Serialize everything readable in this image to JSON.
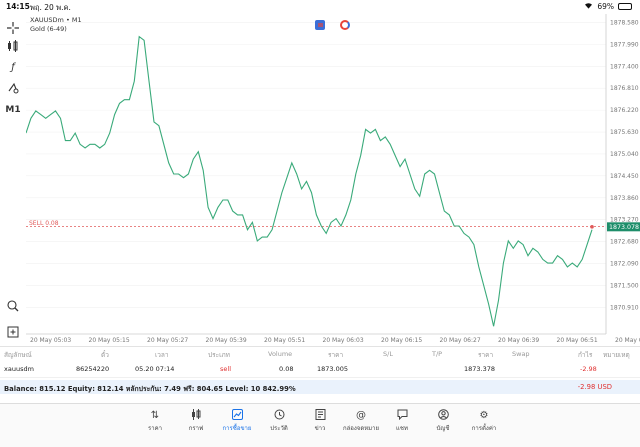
{
  "status_bar": {
    "time": "14:15",
    "date": "พฤ. 20 พ.ค.",
    "battery": "69%",
    "battery_level": 0.69
  },
  "chart": {
    "symbol_line": "XAUUSDm • M1",
    "description": "Gold (6-49)",
    "timeframe": "M1",
    "sell_label": "SELL 0.08",
    "current_price_label": "1873.078",
    "line_color": "#3aaa7a",
    "sell_line_color": "#e05a5a",
    "price_badge_color": "#1e8e6a"
  },
  "chart_data": {
    "type": "line",
    "y_ticks": [
      "1878.580",
      "1877.990",
      "1877.400",
      "1876.810",
      "1876.220",
      "1875.630",
      "1875.040",
      "1874.450",
      "1873.860",
      "1873.270",
      "1872.680",
      "1872.090",
      "1871.500",
      "1870.910"
    ],
    "ylim": [
      1870.3,
      1878.7
    ],
    "x_ticks": [
      "20 May 05:03",
      "20 May 05:15",
      "20 May 05:27",
      "20 May 05:39",
      "20 May 05:51",
      "20 May 06:03",
      "20 May 06:15",
      "20 May 06:27",
      "20 May 06:39",
      "20 May 06:51",
      "20 May 07:03",
      "20 May 07:15"
    ],
    "sell_level": 1873.09,
    "current_price": 1873.078,
    "series": [
      {
        "values": [
          1875.6,
          1876.0,
          1876.2,
          1876.1,
          1876.0,
          1876.1,
          1876.2,
          1876.0,
          1875.4,
          1875.4,
          1875.6,
          1875.3,
          1875.2,
          1875.3,
          1875.3,
          1875.2,
          1875.3,
          1875.6,
          1876.1,
          1876.4,
          1876.5,
          1876.5,
          1877.0,
          1878.2,
          1878.1,
          1877.0,
          1875.9,
          1875.8,
          1875.3,
          1874.8,
          1874.5,
          1874.5,
          1874.4,
          1874.5,
          1874.9,
          1875.1,
          1874.6,
          1873.6,
          1873.3,
          1873.6,
          1873.8,
          1873.8,
          1873.5,
          1873.4,
          1873.4,
          1873.0,
          1873.2,
          1872.7,
          1872.8,
          1872.8,
          1873.0,
          1873.5,
          1874.0,
          1874.4,
          1874.8,
          1874.5,
          1874.1,
          1874.3,
          1874.0,
          1873.4,
          1873.1,
          1872.9,
          1873.2,
          1873.3,
          1873.1,
          1873.4,
          1873.8,
          1874.5,
          1875.0,
          1875.7,
          1875.6,
          1875.7,
          1875.4,
          1875.5,
          1875.3,
          1875.0,
          1874.7,
          1874.9,
          1874.5,
          1874.1,
          1873.9,
          1874.5,
          1874.6,
          1874.5,
          1874.0,
          1873.5,
          1873.4,
          1873.1,
          1873.1,
          1872.9,
          1872.8,
          1872.6,
          1872.0,
          1871.5,
          1871.0,
          1870.4,
          1871.1,
          1872.1,
          1872.7,
          1872.5,
          1872.7,
          1872.6,
          1872.3,
          1872.5,
          1872.4,
          1872.2,
          1872.1,
          1872.1,
          1872.3,
          1872.2,
          1872.0,
          1872.1,
          1872.0,
          1872.2,
          1872.6,
          1873.0
        ]
      }
    ]
  },
  "trade_table": {
    "headers": {
      "symbol": "สัญลักษณ์",
      "ticket": "ตั๋ว",
      "time": "เวลา",
      "type": "ประเภท",
      "volume": "Volume",
      "price": "ราคา",
      "sl": "S/L",
      "tp": "T/P",
      "price2": "ราคา",
      "swap": "Swap",
      "profit": "กำไร",
      "comment": "หมายเหตุ"
    },
    "row": {
      "symbol": "xauusdm",
      "ticket": "86254220",
      "time": "05.20 07:14",
      "type": "sell",
      "volume": "0.08",
      "price": "1873.005",
      "price2": "1873.378",
      "profit": "-2.98"
    }
  },
  "balance": {
    "text": "Balance: 815.12 Equity: 812.14 หลักประกัน: 7.49 ฟรี: 804.65 Level: 10 842.99%",
    "total": "-2.98  USD"
  },
  "nav": {
    "items": [
      {
        "label": "ราคา",
        "icon": "arrows-updown-icon"
      },
      {
        "label": "กราฟ",
        "icon": "candles-icon"
      },
      {
        "label": "การซื้อขาย",
        "icon": "trade-chart-icon"
      },
      {
        "label": "ประวัติ",
        "icon": "history-icon"
      },
      {
        "label": "ข่าว",
        "icon": "news-icon"
      },
      {
        "label": "กล่องจดหมาย",
        "icon": "at-sign-icon"
      },
      {
        "label": "แชท",
        "icon": "chat-icon"
      },
      {
        "label": "บัญชี",
        "icon": "account-icon"
      },
      {
        "label": "การตั้งค่า",
        "icon": "gear-icon"
      }
    ],
    "active_color": "#1a73e8"
  }
}
